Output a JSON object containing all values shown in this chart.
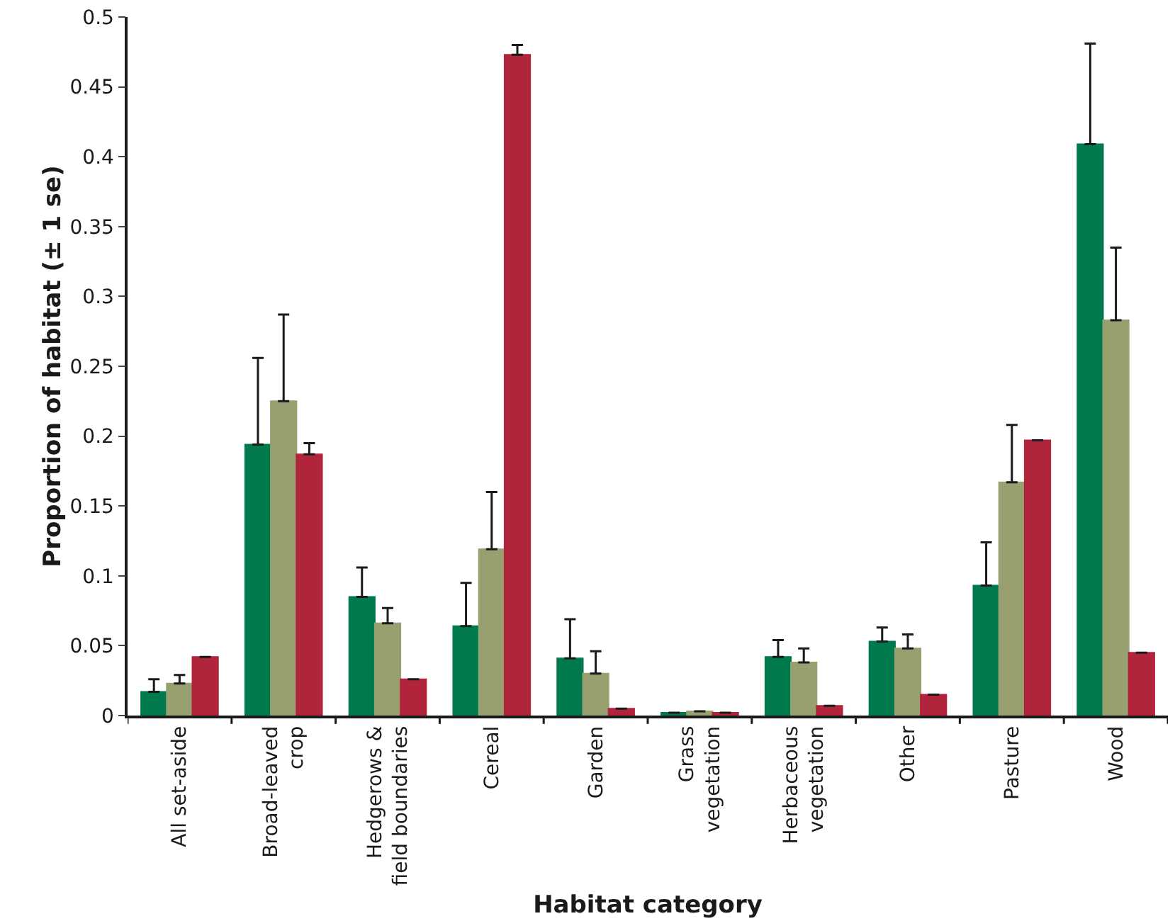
{
  "chart_data": {
    "type": "bar",
    "xlabel": "Habitat category",
    "ylabel": "Proportion of habitat (± 1 se)",
    "categories": [
      "All set-aside",
      "Broad-leaved crop",
      "Hedgerows & field boundaries",
      "Cereal",
      "Garden",
      "Grass vegetation",
      "Herbaceous vegetation",
      "Other",
      "Pasture",
      "Wood"
    ],
    "series": [
      {
        "color": "#007a4d",
        "values": [
          0.017,
          0.194,
          0.085,
          0.064,
          0.041,
          0.002,
          0.042,
          0.053,
          0.093,
          0.409
        ],
        "errors": [
          [
            0.017,
            0.026
          ],
          [
            0.194,
            0.256
          ],
          [
            0.085,
            0.106
          ],
          [
            0.064,
            0.095
          ],
          [
            0.041,
            0.069
          ],
          null,
          [
            0.042,
            0.054
          ],
          [
            0.053,
            0.063
          ],
          [
            0.093,
            0.124
          ],
          [
            0.409,
            0.481
          ]
        ]
      },
      {
        "color": "#98a070",
        "values": [
          0.023,
          0.225,
          0.066,
          0.119,
          0.03,
          0.003,
          0.038,
          0.048,
          0.167,
          0.283
        ],
        "errors": [
          [
            0.023,
            0.029
          ],
          [
            0.225,
            0.287
          ],
          [
            0.066,
            0.077
          ],
          [
            0.119,
            0.16
          ],
          [
            0.03,
            0.046
          ],
          null,
          [
            0.038,
            0.048
          ],
          [
            0.048,
            0.058
          ],
          [
            0.167,
            0.208
          ],
          [
            0.283,
            0.335
          ]
        ]
      },
      {
        "color": "#b0243c",
        "values": [
          0.042,
          0.187,
          0.026,
          0.473,
          0.005,
          0.002,
          0.007,
          0.015,
          0.197,
          0.045
        ],
        "errors": [
          null,
          [
            0.187,
            0.195
          ],
          null,
          [
            0.473,
            0.48
          ],
          null,
          null,
          null,
          null,
          null,
          null
        ]
      }
    ],
    "ylim": [
      0,
      0.5
    ],
    "yticks": [
      0,
      0.05,
      0.1,
      0.15,
      0.2,
      0.25,
      0.3,
      0.35,
      0.4,
      0.45,
      0.5
    ],
    "grid": false
  }
}
